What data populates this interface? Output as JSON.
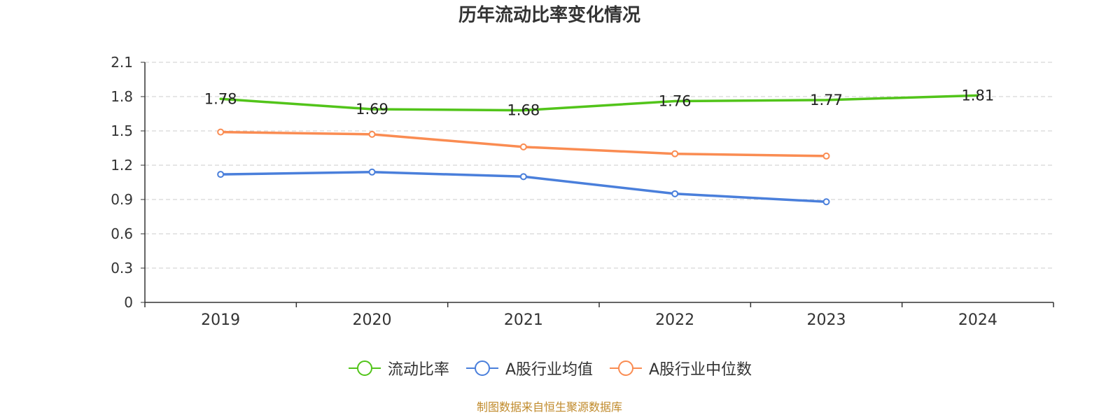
{
  "chart_data": {
    "type": "line",
    "title": "历年流动比率变化情况",
    "categories": [
      "2019",
      "2020",
      "2021",
      "2022",
      "2023",
      "2024"
    ],
    "ylim": [
      0,
      2.1
    ],
    "yticks": [
      "0",
      "0.3",
      "0.6",
      "0.9",
      "1.2",
      "1.5",
      "1.8",
      "2.1"
    ],
    "grid": true,
    "legend_position": "bottom",
    "series": [
      {
        "name": "流动比率",
        "color": "#52c41a",
        "values": [
          1.78,
          1.69,
          1.68,
          1.76,
          1.77,
          1.81
        ],
        "labels": [
          "1.78",
          "1.69",
          "1.68",
          "1.76",
          "1.77",
          "1.81"
        ],
        "show_markers": false
      },
      {
        "name": "A股行业均值",
        "color": "#4a7fdb",
        "values": [
          1.12,
          1.14,
          1.1,
          0.95,
          0.88,
          null
        ],
        "show_markers": true
      },
      {
        "name": "A股行业中位数",
        "color": "#fa8c52",
        "values": [
          1.49,
          1.47,
          1.36,
          1.3,
          1.28,
          null
        ],
        "show_markers": true
      }
    ]
  },
  "source_note": "制图数据来自恒生聚源数据库"
}
